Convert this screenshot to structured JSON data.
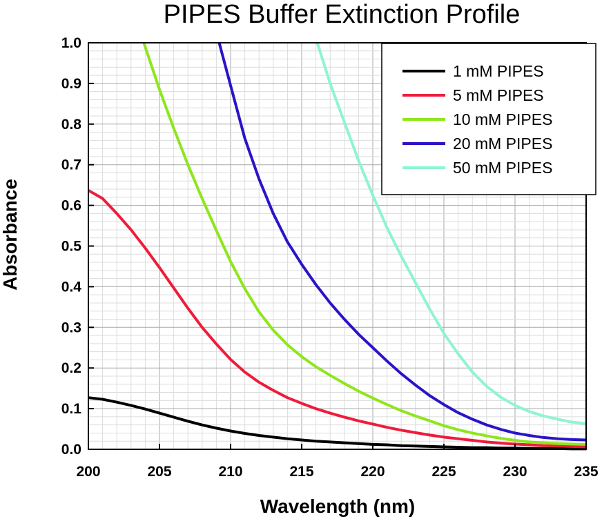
{
  "chart_data": {
    "type": "line",
    "title": "PIPES Buffer Extinction Profile",
    "xlabel": "Wavelength (nm)",
    "ylabel": "Absorbance",
    "xlim": [
      200,
      235
    ],
    "ylim": [
      0,
      1.0
    ],
    "xticks": [
      200,
      205,
      210,
      215,
      220,
      225,
      230,
      235
    ],
    "xtick_labels": [
      "200",
      "205",
      "210",
      "215",
      "220",
      "225",
      "230",
      "235"
    ],
    "yticks": [
      0,
      0.1,
      0.2,
      0.3,
      0.4,
      0.5,
      0.6,
      0.7,
      0.8,
      0.9,
      1.0
    ],
    "ytick_labels": [
      "0.0",
      "0.1",
      "0.2",
      "0.3",
      "0.4",
      "0.5",
      "0.6",
      "0.7",
      "0.8",
      "0.9",
      "1.0"
    ],
    "grid": true,
    "legend_position": "top-right",
    "series": [
      {
        "name": "1 mM PIPES",
        "color": "#000000",
        "x": [
          200,
          201,
          202,
          203,
          204,
          205,
          206,
          207,
          208,
          209,
          210,
          211,
          212,
          213,
          214,
          215,
          216,
          217,
          218,
          219,
          220,
          221,
          222,
          223,
          224,
          225,
          226,
          227,
          228,
          229,
          230,
          231,
          232,
          233,
          234,
          235
        ],
        "y": [
          0.127,
          0.123,
          0.116,
          0.108,
          0.099,
          0.089,
          0.079,
          0.069,
          0.06,
          0.052,
          0.045,
          0.039,
          0.034,
          0.03,
          0.026,
          0.023,
          0.02,
          0.018,
          0.016,
          0.014,
          0.012,
          0.011,
          0.009,
          0.008,
          0.007,
          0.006,
          0.005,
          0.004,
          0.004,
          0.003,
          0.003,
          0.002,
          0.002,
          0.002,
          0.001,
          0.001
        ]
      },
      {
        "name": "5 mM PIPES",
        "color": "#ee1c3a",
        "x": [
          200,
          201,
          202,
          203,
          204,
          205,
          206,
          207,
          208,
          209,
          210,
          211,
          212,
          213,
          214,
          215,
          216,
          217,
          218,
          219,
          220,
          221,
          222,
          223,
          224,
          225,
          226,
          227,
          228,
          229,
          230,
          231,
          232,
          233,
          234,
          235
        ],
        "y": [
          0.637,
          0.617,
          0.58,
          0.54,
          0.495,
          0.447,
          0.397,
          0.347,
          0.3,
          0.259,
          0.221,
          0.19,
          0.165,
          0.145,
          0.127,
          0.113,
          0.1,
          0.089,
          0.079,
          0.07,
          0.062,
          0.054,
          0.047,
          0.041,
          0.035,
          0.03,
          0.026,
          0.022,
          0.018,
          0.015,
          0.013,
          0.011,
          0.009,
          0.008,
          0.007,
          0.006
        ]
      },
      {
        "name": "10 mM PIPES",
        "color": "#8ee61c",
        "x": [
          203.9,
          205,
          206,
          207,
          208,
          209,
          210,
          211,
          212,
          213,
          214,
          215,
          216,
          217,
          218,
          219,
          220,
          221,
          222,
          223,
          224,
          225,
          226,
          227,
          228,
          229,
          230,
          231,
          232,
          233,
          234,
          235
        ],
        "y": [
          1.0,
          0.885,
          0.79,
          0.7,
          0.617,
          0.538,
          0.462,
          0.395,
          0.338,
          0.293,
          0.257,
          0.228,
          0.203,
          0.182,
          0.162,
          0.143,
          0.126,
          0.11,
          0.095,
          0.082,
          0.07,
          0.058,
          0.048,
          0.04,
          0.033,
          0.027,
          0.022,
          0.018,
          0.016,
          0.014,
          0.013,
          0.012
        ]
      },
      {
        "name": "20 mM PIPES",
        "color": "#2a14c8",
        "x": [
          209.2,
          210,
          211,
          212,
          213,
          214,
          215,
          216,
          217,
          218,
          219,
          220,
          221,
          222,
          223,
          224,
          225,
          226,
          227,
          228,
          229,
          230,
          231,
          232,
          233,
          234,
          235
        ],
        "y": [
          1.0,
          0.895,
          0.765,
          0.665,
          0.58,
          0.51,
          0.455,
          0.405,
          0.36,
          0.32,
          0.283,
          0.25,
          0.217,
          0.186,
          0.158,
          0.132,
          0.11,
          0.09,
          0.074,
          0.06,
          0.049,
          0.04,
          0.034,
          0.029,
          0.026,
          0.024,
          0.023
        ]
      },
      {
        "name": "50 mM PIPES",
        "color": "#8ef5cf",
        "x": [
          216.1,
          217,
          218,
          219,
          220,
          221,
          222,
          223,
          224,
          225,
          226,
          227,
          228,
          229,
          230,
          231,
          232,
          233,
          234,
          235
        ],
        "y": [
          1.0,
          0.9,
          0.805,
          0.71,
          0.625,
          0.545,
          0.475,
          0.41,
          0.345,
          0.285,
          0.235,
          0.19,
          0.155,
          0.128,
          0.108,
          0.093,
          0.082,
          0.074,
          0.067,
          0.063
        ]
      }
    ]
  }
}
